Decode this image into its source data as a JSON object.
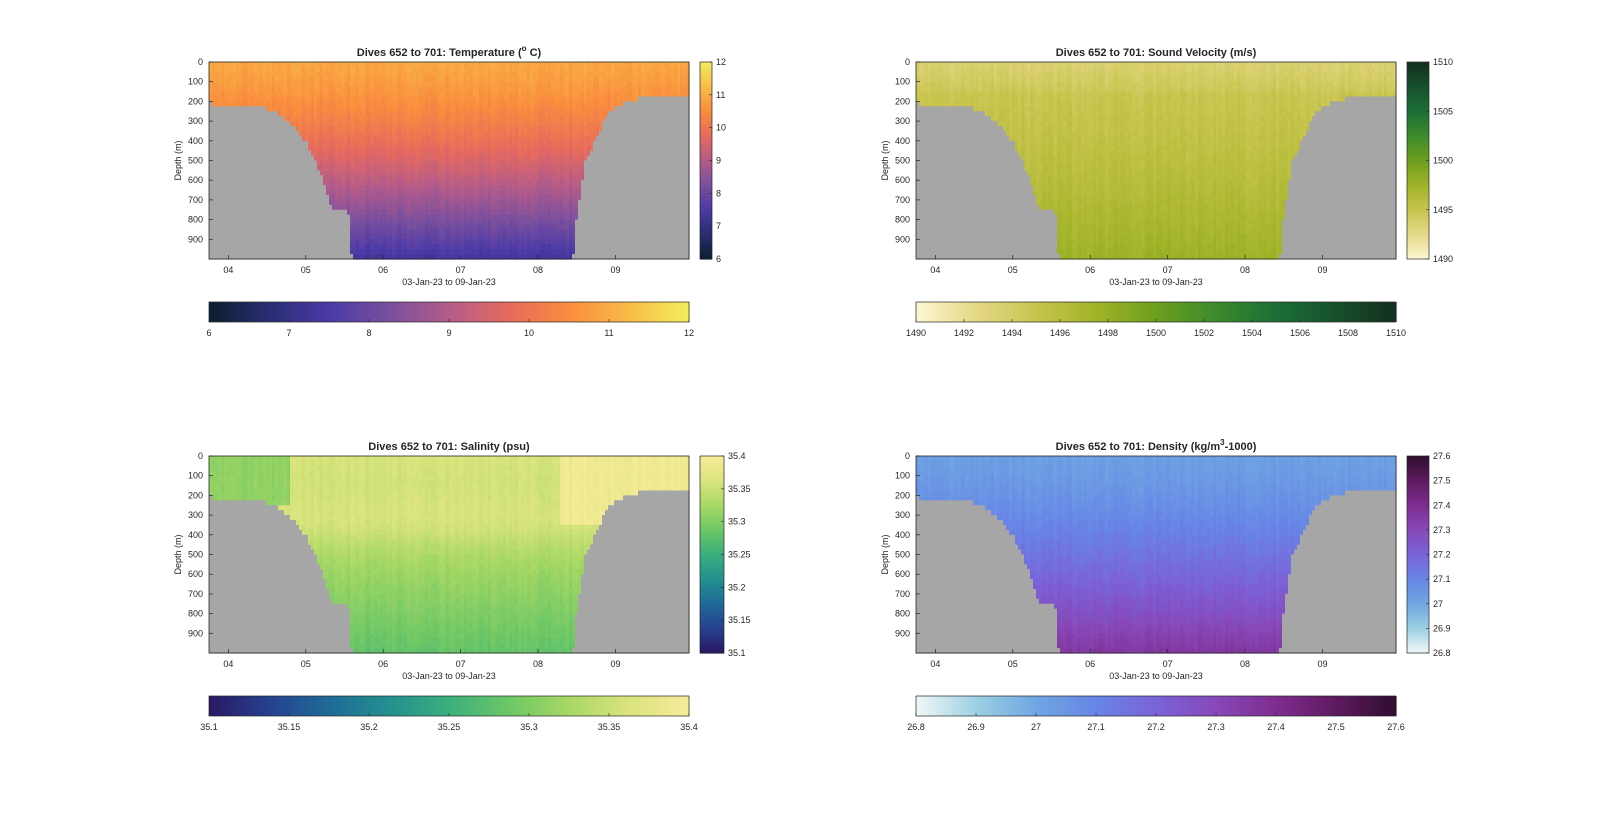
{
  "figure": {
    "background": "#ffffff",
    "land_color": "#a6a6a6",
    "axes_color": "#262626"
  },
  "chart_data": [
    {
      "id": "temperature",
      "type": "heatmap",
      "title": "Dives 652 to 701: Temperature (° C)",
      "title_parts": [
        "Dives 652 to 701: Temperature (",
        "o",
        " C)"
      ],
      "ylabel": "Depth (m)",
      "xlabel": "03-Jan-23 to 09-Jan-23",
      "x_ticks": [
        "04",
        "05",
        "06",
        "07",
        "08",
        "09"
      ],
      "y_ticks": [
        "0",
        "100",
        "200",
        "300",
        "400",
        "500",
        "600",
        "700",
        "800",
        "900"
      ],
      "xlim_days": [
        3.75,
        9.95
      ],
      "ylim": [
        0,
        1000
      ],
      "colorbar": {
        "range": [
          6,
          12
        ],
        "ticks": [
          "6",
          "7",
          "8",
          "9",
          "10",
          "11",
          "12"
        ],
        "horizontal_ticks": [
          "6",
          "7",
          "8",
          "9",
          "10",
          "11",
          "12"
        ],
        "colors": [
          "#0b1e2e",
          "#2b2d73",
          "#4b3aa6",
          "#7a4f9e",
          "#b35b8a",
          "#e66a5e",
          "#f98d3e",
          "#f9bb47",
          "#f2ee5e"
        ]
      },
      "profile": {
        "surface": 10.9,
        "deep": 7.3
      }
    },
    {
      "id": "sound-velocity",
      "type": "heatmap",
      "title": "Dives 652 to 701: Sound Velocity (m/s)",
      "title_parts": [
        "Dives 652 to 701: Sound Velocity (m/s)",
        "",
        ""
      ],
      "ylabel": "Depth (m)",
      "xlabel": "03-Jan-23 to 09-Jan-23",
      "x_ticks": [
        "04",
        "05",
        "06",
        "07",
        "08",
        "09"
      ],
      "y_ticks": [
        "0",
        "100",
        "200",
        "300",
        "400",
        "500",
        "600",
        "700",
        "800",
        "900"
      ],
      "xlim_days": [
        3.75,
        9.95
      ],
      "ylim": [
        0,
        1000
      ],
      "colorbar": {
        "range": [
          1490,
          1510
        ],
        "ticks": [
          "1490",
          "1495",
          "1500",
          "1505",
          "1510"
        ],
        "horizontal_ticks": [
          "1490",
          "1492",
          "1494",
          "1496",
          "1498",
          "1500",
          "1502",
          "1504",
          "1506",
          "1508",
          "1510"
        ],
        "colors": [
          "#fdf7d2",
          "#e5d888",
          "#c8c44d",
          "#a0b327",
          "#6d9f1e",
          "#3c8a2c",
          "#1b6f35",
          "#17502c",
          "#12301d"
        ]
      },
      "profile": {
        "surface": 1494.6,
        "deep": 1497.6
      }
    },
    {
      "id": "salinity",
      "type": "heatmap",
      "title": "Dives 652 to 701: Salinity (psu)",
      "title_parts": [
        "Dives 652 to 701: Salinity (psu)",
        "",
        ""
      ],
      "ylabel": "Depth (m)",
      "xlabel": "03-Jan-23 to 09-Jan-23",
      "x_ticks": [
        "04",
        "05",
        "06",
        "07",
        "08",
        "09"
      ],
      "y_ticks": [
        "0",
        "100",
        "200",
        "300",
        "400",
        "500",
        "600",
        "700",
        "800",
        "900"
      ],
      "xlim_days": [
        3.75,
        9.95
      ],
      "ylim": [
        0,
        1000
      ],
      "colorbar": {
        "range": [
          35.1,
          35.4
        ],
        "ticks": [
          "35.1",
          "35.15",
          "35.2",
          "35.25",
          "35.3",
          "35.35",
          "35.4"
        ],
        "horizontal_ticks": [
          "35.1",
          "35.15",
          "35.2",
          "35.25",
          "35.3",
          "35.35",
          "35.4"
        ],
        "colors": [
          "#2a1864",
          "#26418f",
          "#1f6a96",
          "#23908f",
          "#3aaf7e",
          "#6dc766",
          "#a8d863",
          "#dae47d",
          "#f8eb9a"
        ]
      },
      "profile": {
        "surface": 35.37,
        "deep": 35.3
      }
    },
    {
      "id": "density",
      "type": "heatmap",
      "title": "Dives 652 to 701: Density (kg/m³-1000)",
      "title_parts": [
        "Dives 652 to 701: Density (kg/m",
        "3",
        "-1000)"
      ],
      "ylabel": "Depth (m)",
      "xlabel": "03-Jan-23 to 09-Jan-23",
      "x_ticks": [
        "04",
        "05",
        "06",
        "07",
        "08",
        "09"
      ],
      "y_ticks": [
        "0",
        "100",
        "200",
        "300",
        "400",
        "500",
        "600",
        "700",
        "800",
        "900"
      ],
      "xlim_days": [
        3.75,
        9.95
      ],
      "ylim": [
        0,
        1000
      ],
      "colorbar": {
        "range": [
          26.8,
          27.6
        ],
        "ticks": [
          "26.8",
          "26.9",
          "27",
          "27.1",
          "27.2",
          "27.3",
          "27.4",
          "27.5",
          "27.6"
        ],
        "horizontal_ticks": [
          "26.8",
          "26.9",
          "27",
          "27.1",
          "27.2",
          "27.3",
          "27.4",
          "27.5",
          "27.6"
        ],
        "colors": [
          "#f1f7f5",
          "#9dd0e3",
          "#6fa6e2",
          "#6785e6",
          "#7a63d9",
          "#8748b8",
          "#7e2d8f",
          "#5e1a60",
          "#2f0d2e"
        ]
      },
      "profile": {
        "surface": 27.02,
        "deep": 27.36
      }
    }
  ]
}
